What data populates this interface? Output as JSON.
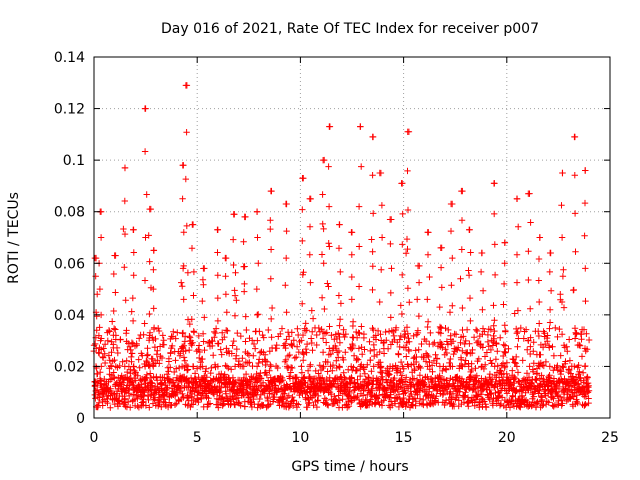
{
  "chart_data": {
    "type": "scatter",
    "title": "Day 016 of 2021, Rate Of TEC Index for receiver p007",
    "xlabel": "GPS time / hours",
    "ylabel": "ROTI / TECUs",
    "xlim": [
      0,
      25
    ],
    "ylim": [
      0,
      0.14
    ],
    "x_ticks": [
      0,
      5,
      10,
      15,
      20,
      25
    ],
    "y_ticks": [
      0,
      0.02,
      0.04,
      0.06,
      0.08,
      0.1,
      0.12,
      0.14
    ],
    "x_tick_labels": [
      "0",
      "5",
      "10",
      "15",
      "20",
      "25"
    ],
    "y_tick_labels": [
      "0",
      "0.02",
      "0.04",
      "0.06",
      "0.08",
      "0.1",
      "0.12",
      "0.14"
    ],
    "grid": true,
    "marker": "+",
    "marker_color": "#ff0000",
    "series": [
      {
        "name": "ROTI",
        "x_range": [
          0,
          24
        ],
        "baseline": 0.01,
        "peaks": [
          {
            "x": 0.1,
            "y": 0.062
          },
          {
            "x": 0.3,
            "y": 0.08
          },
          {
            "x": 1.0,
            "y": 0.063
          },
          {
            "x": 1.5,
            "y": 0.097
          },
          {
            "x": 1.9,
            "y": 0.073
          },
          {
            "x": 2.5,
            "y": 0.12
          },
          {
            "x": 2.7,
            "y": 0.081
          },
          {
            "x": 2.9,
            "y": 0.065
          },
          {
            "x": 4.3,
            "y": 0.098
          },
          {
            "x": 4.5,
            "y": 0.129
          },
          {
            "x": 4.8,
            "y": 0.075
          },
          {
            "x": 5.3,
            "y": 0.058
          },
          {
            "x": 6.0,
            "y": 0.073
          },
          {
            "x": 6.4,
            "y": 0.062
          },
          {
            "x": 6.8,
            "y": 0.079
          },
          {
            "x": 7.3,
            "y": 0.078
          },
          {
            "x": 7.9,
            "y": 0.08
          },
          {
            "x": 8.6,
            "y": 0.088
          },
          {
            "x": 9.3,
            "y": 0.083
          },
          {
            "x": 10.1,
            "y": 0.093
          },
          {
            "x": 10.5,
            "y": 0.085
          },
          {
            "x": 11.1,
            "y": 0.1
          },
          {
            "x": 11.4,
            "y": 0.113
          },
          {
            "x": 11.9,
            "y": 0.075
          },
          {
            "x": 12.5,
            "y": 0.072
          },
          {
            "x": 12.9,
            "y": 0.113
          },
          {
            "x": 13.5,
            "y": 0.109
          },
          {
            "x": 13.9,
            "y": 0.095
          },
          {
            "x": 14.4,
            "y": 0.077
          },
          {
            "x": 14.9,
            "y": 0.091
          },
          {
            "x": 15.2,
            "y": 0.111
          },
          {
            "x": 15.7,
            "y": 0.059
          },
          {
            "x": 16.2,
            "y": 0.072
          },
          {
            "x": 16.8,
            "y": 0.066
          },
          {
            "x": 17.3,
            "y": 0.083
          },
          {
            "x": 17.8,
            "y": 0.088
          },
          {
            "x": 18.2,
            "y": 0.073
          },
          {
            "x": 18.8,
            "y": 0.064
          },
          {
            "x": 19.4,
            "y": 0.091
          },
          {
            "x": 19.9,
            "y": 0.068
          },
          {
            "x": 20.5,
            "y": 0.085
          },
          {
            "x": 21.1,
            "y": 0.087
          },
          {
            "x": 21.6,
            "y": 0.07
          },
          {
            "x": 22.1,
            "y": 0.064
          },
          {
            "x": 22.7,
            "y": 0.095
          },
          {
            "x": 23.3,
            "y": 0.109
          },
          {
            "x": 23.8,
            "y": 0.096
          }
        ]
      }
    ]
  }
}
